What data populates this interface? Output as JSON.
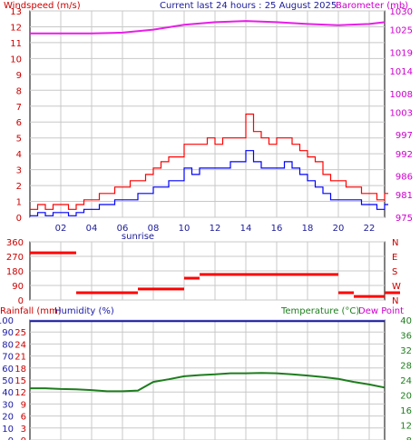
{
  "colors": {
    "background": "#ffffff",
    "grid": "#c8c8c8",
    "gust": "#ff0000",
    "wind": "#0000ff",
    "barometer": "#e81ee8",
    "direction": "#ff0000",
    "humidity": "#1a1aa8",
    "temperature": "#1e7d1e",
    "rainfall": "#cc0000",
    "dewpoint": "#d020d0",
    "axis": "#000000",
    "title": "#1a1a99"
  },
  "header": {
    "windspeed": "Windspeed (m/s)",
    "current": "Current last 24 hours : 25 August 2025",
    "barometer": "Barometer (mb)"
  },
  "footer": {
    "rainfall": "Rainfall (mm)",
    "humidity": "Humidity (%)",
    "temperature": "Temperature (°C)",
    "dewpoint": "Dew Point"
  },
  "chart_data": [
    {
      "type": "line",
      "title": "Current last 24 hours : 25 August 2025",
      "xlabel": "",
      "x_ticks": [
        "02",
        "04",
        "06",
        "08",
        "10",
        "12",
        "14",
        "16",
        "18",
        "20",
        "22"
      ],
      "annotation": "sunrise",
      "ylabel": "Windspeed (m/s)",
      "y_ticks": [
        0,
        1,
        2,
        3,
        4,
        5,
        6,
        7,
        8,
        9,
        10,
        11,
        12,
        13
      ],
      "ylim": [
        0,
        13
      ],
      "ylabel_right": "Barometer (mb)",
      "y_ticks_right": [
        975,
        981,
        986,
        992,
        997,
        1003,
        1008,
        1014,
        1019,
        1025,
        1030
      ],
      "ylim_right": [
        975,
        1030
      ],
      "series": [
        {
          "name": "gust",
          "x": [
            0.0,
            0.5,
            1.0,
            1.5,
            2.0,
            2.5,
            3.0,
            3.5,
            4.0,
            4.5,
            5.0,
            5.5,
            6.0,
            6.5,
            7.0,
            7.5,
            8.0,
            8.5,
            9.0,
            9.5,
            10.0,
            10.5,
            11.0,
            11.5,
            12.0,
            12.5,
            13.0,
            13.5,
            14.0,
            14.5,
            15.0,
            15.5,
            16.0,
            16.5,
            17.0,
            17.5,
            18.0,
            18.5,
            19.0,
            19.5,
            20.0,
            20.5,
            21.0,
            21.5,
            22.0,
            22.5,
            23.0
          ],
          "values": [
            0.5,
            0.8,
            0.5,
            0.8,
            0.8,
            0.5,
            0.8,
            1.1,
            1.1,
            1.5,
            1.5,
            1.9,
            1.9,
            2.3,
            2.3,
            2.7,
            3.1,
            3.5,
            3.8,
            3.8,
            4.6,
            4.6,
            4.6,
            5.0,
            4.6,
            5.0,
            5.0,
            5.0,
            6.5,
            5.4,
            5.0,
            4.6,
            5.0,
            5.0,
            4.6,
            4.2,
            3.8,
            3.5,
            2.7,
            2.3,
            2.3,
            1.9,
            1.9,
            1.5,
            1.5,
            1.1,
            1.5
          ]
        },
        {
          "name": "wind",
          "x": [
            0.0,
            0.5,
            1.0,
            1.5,
            2.0,
            2.5,
            3.0,
            3.5,
            4.0,
            4.5,
            5.0,
            5.5,
            6.0,
            6.5,
            7.0,
            7.5,
            8.0,
            8.5,
            9.0,
            9.5,
            10.0,
            10.5,
            11.0,
            11.5,
            12.0,
            12.5,
            13.0,
            13.5,
            14.0,
            14.5,
            15.0,
            15.5,
            16.0,
            16.5,
            17.0,
            17.5,
            18.0,
            18.5,
            19.0,
            19.5,
            20.0,
            20.5,
            21.0,
            21.5,
            22.0,
            22.5,
            23.0
          ],
          "values": [
            0.1,
            0.3,
            0.1,
            0.3,
            0.3,
            0.1,
            0.3,
            0.5,
            0.5,
            0.8,
            0.8,
            1.1,
            1.1,
            1.1,
            1.5,
            1.5,
            1.9,
            1.9,
            2.3,
            2.3,
            3.1,
            2.7,
            3.1,
            3.1,
            3.1,
            3.1,
            3.5,
            3.5,
            4.2,
            3.5,
            3.1,
            3.1,
            3.1,
            3.5,
            3.1,
            2.7,
            2.3,
            1.9,
            1.5,
            1.1,
            1.1,
            1.1,
            1.1,
            0.8,
            0.8,
            0.5,
            0.8
          ]
        },
        {
          "name": "barometer",
          "x": [
            0,
            2,
            4,
            6,
            8,
            10,
            12,
            14,
            16,
            18,
            20,
            22,
            23
          ],
          "values": [
            1024.0,
            1024.0,
            1024.0,
            1024.2,
            1025.0,
            1026.3,
            1027.0,
            1027.3,
            1027.0,
            1026.5,
            1026.2,
            1026.5,
            1027.0
          ]
        }
      ]
    },
    {
      "type": "scatter",
      "ylabel": "",
      "y_ticks": [
        0,
        90,
        180,
        270,
        360
      ],
      "ylim": [
        0,
        360
      ],
      "y_ticks_right": [
        "N",
        "W",
        "S",
        "E",
        "N"
      ],
      "series": [
        {
          "name": "direction",
          "x": [
            0,
            1,
            2,
            3,
            4,
            5,
            6,
            7,
            8,
            9,
            10,
            11,
            12,
            13,
            14,
            15,
            16,
            17,
            18,
            19,
            20,
            21,
            22,
            23
          ],
          "values": [
            292,
            292,
            292,
            45,
            45,
            45,
            45,
            68,
            68,
            68,
            135,
            158,
            158,
            158,
            158,
            158,
            158,
            158,
            158,
            158,
            45,
            22,
            22,
            45
          ]
        }
      ]
    },
    {
      "type": "line",
      "y_ticks": [
        0,
        10,
        20,
        30,
        40,
        50,
        60,
        70,
        80,
        90,
        100
      ],
      "ylim": [
        0,
        100
      ],
      "y_ticks_left2": [
        0,
        3,
        6,
        9,
        12,
        15,
        18,
        21,
        24,
        25
      ],
      "y_ticks_right": [
        8,
        12,
        16,
        20,
        24,
        28,
        32,
        36,
        40
      ],
      "ylim_right": [
        8,
        40
      ],
      "series": [
        {
          "name": "humidity",
          "x": [
            0,
            23
          ],
          "values": [
            99,
            99
          ]
        },
        {
          "name": "temperature",
          "x": [
            0,
            1,
            2,
            3,
            4,
            5,
            6,
            7,
            8,
            9,
            10,
            11,
            12,
            13,
            14,
            15,
            16,
            17,
            18,
            19,
            20,
            21,
            22,
            23
          ],
          "values": [
            21.8,
            21.8,
            21.6,
            21.5,
            21.3,
            21.0,
            21.0,
            21.2,
            23.5,
            24.2,
            25.0,
            25.3,
            25.5,
            25.8,
            25.8,
            25.9,
            25.8,
            25.5,
            25.2,
            24.8,
            24.3,
            23.5,
            22.8,
            22.0
          ]
        }
      ]
    }
  ]
}
